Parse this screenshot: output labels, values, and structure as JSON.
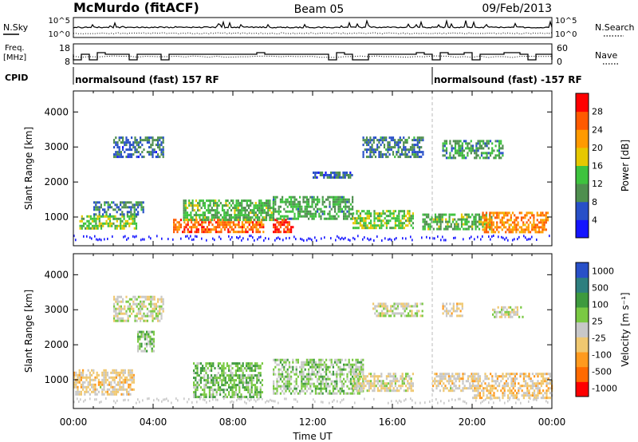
{
  "header": {
    "station": "McMurdo (fitACF)",
    "beam": "Beam 05",
    "date": "09/Feb/2013"
  },
  "noise_panel": {
    "left_label": "N.Sky",
    "right_label": "N.Search",
    "left_ticks": [
      "10^5",
      "10^0"
    ],
    "right_ticks": [
      "10^5",
      "10^0"
    ]
  },
  "freq_panel": {
    "left_label_1": "Freq.",
    "left_label_2": "[MHz]",
    "right_label": "Nave",
    "left_ticks": [
      "18",
      "8"
    ],
    "right_ticks": [
      "60",
      "0"
    ],
    "freq_mhz_approx": 12,
    "nave_approx": 22
  },
  "cpid": {
    "label": "CPID",
    "segments": [
      {
        "text": "normalsound (fast) 157 RF",
        "start_hour": 0,
        "end_hour": 18
      },
      {
        "text": "normalsound (fast) -157 RF",
        "start_hour": 18,
        "end_hour": 24
      }
    ]
  },
  "xaxis": {
    "label": "Time UT",
    "ticks": [
      "00:00",
      "04:00",
      "08:00",
      "12:00",
      "16:00",
      "20:00",
      "00:00"
    ],
    "range_hours": [
      0,
      24
    ]
  },
  "chart_data": [
    {
      "type": "heatmap",
      "title": "",
      "xlabel": "Time UT",
      "ylabel": "Slant Range [km]",
      "ylim": [
        180,
        4600
      ],
      "yticks": [
        "1000",
        "2000",
        "3000",
        "4000"
      ],
      "colorbar": {
        "label": "Power [dB]",
        "ticks": [
          "4",
          "8",
          "12",
          "16",
          "20",
          "24",
          "28"
        ],
        "range": [
          0,
          30
        ],
        "colors": [
          "#1414ff",
          "#2850c8",
          "#4f8f4f",
          "#3ec33e",
          "#e6c800",
          "#ff9a00",
          "#ff5a00",
          "#ff0000"
        ]
      },
      "echo_regions": [
        {
          "t0": 0.3,
          "t1": 3.2,
          "r0": 650,
          "r1": 1050,
          "value": 14
        },
        {
          "t0": 1.0,
          "t1": 3.5,
          "r0": 1050,
          "r1": 1450,
          "value": 8
        },
        {
          "t0": 2.0,
          "t1": 4.5,
          "r0": 2700,
          "r1": 3300,
          "value": 7
        },
        {
          "t0": 5.0,
          "t1": 9.5,
          "r0": 550,
          "r1": 950,
          "value": 24
        },
        {
          "t0": 5.5,
          "t1": 10.0,
          "r0": 950,
          "r1": 1500,
          "value": 12
        },
        {
          "t0": 10.0,
          "t1": 11.0,
          "r0": 550,
          "r1": 950,
          "value": 26
        },
        {
          "t0": 10.0,
          "t1": 14.0,
          "r0": 950,
          "r1": 1600,
          "value": 11
        },
        {
          "t0": 12.0,
          "t1": 14.0,
          "r0": 2100,
          "r1": 2300,
          "value": 6
        },
        {
          "t0": 14.0,
          "t1": 17.0,
          "r0": 700,
          "r1": 1200,
          "value": 14
        },
        {
          "t0": 14.5,
          "t1": 17.5,
          "r0": 2700,
          "r1": 3300,
          "value": 8
        },
        {
          "t0": 17.5,
          "t1": 21.0,
          "r0": 650,
          "r1": 1100,
          "value": 12
        },
        {
          "t0": 18.5,
          "t1": 21.5,
          "r0": 2700,
          "r1": 3200,
          "value": 10
        },
        {
          "t0": 20.5,
          "t1": 23.8,
          "r0": 550,
          "r1": 1150,
          "value": 22
        }
      ]
    },
    {
      "type": "heatmap",
      "title": "",
      "xlabel": "Time UT",
      "ylabel": "Slant Range [km]",
      "ylim": [
        180,
        4600
      ],
      "yticks": [
        "1000",
        "2000",
        "3000",
        "4000"
      ],
      "colorbar": {
        "label": "Velocity [m s⁻¹]",
        "ticks": [
          "1000",
          "500",
          "100",
          "25",
          "-25",
          "-100",
          "-500",
          "-1000"
        ],
        "range": [
          -1200,
          1200
        ],
        "colors": [
          "#ff0000",
          "#ff6a00",
          "#ff9a1e",
          "#f0c870",
          "#c8c8c8",
          "#7ac943",
          "#3e9a3e",
          "#2e7f7f",
          "#2850c8"
        ]
      },
      "echo_regions": [
        {
          "t0": 0.0,
          "t1": 3.0,
          "r0": 550,
          "r1": 1300,
          "value": -160
        },
        {
          "t0": 2.0,
          "t1": 4.5,
          "r0": 2700,
          "r1": 3400,
          "value": 0
        },
        {
          "t0": 3.2,
          "t1": 4.0,
          "r0": 1800,
          "r1": 2400,
          "value": 250
        },
        {
          "t0": 6.0,
          "t1": 9.5,
          "r0": 500,
          "r1": 1500,
          "value": 320
        },
        {
          "t0": 10.0,
          "t1": 14.5,
          "r0": 600,
          "r1": 1600,
          "value": 200
        },
        {
          "t0": 14.0,
          "t1": 17.0,
          "r0": 700,
          "r1": 1200,
          "value": -60
        },
        {
          "t0": 15.0,
          "t1": 17.5,
          "r0": 2800,
          "r1": 3200,
          "value": 0
        },
        {
          "t0": 18.0,
          "t1": 20.0,
          "r0": 700,
          "r1": 1200,
          "value": -150
        },
        {
          "t0": 18.5,
          "t1": 19.5,
          "r0": 2800,
          "r1": 3200,
          "value": -200
        },
        {
          "t0": 20.0,
          "t1": 24.0,
          "r0": 450,
          "r1": 1200,
          "value": -220
        },
        {
          "t0": 21.0,
          "t1": 22.5,
          "r0": 2800,
          "r1": 3100,
          "value": 0
        }
      ]
    }
  ]
}
